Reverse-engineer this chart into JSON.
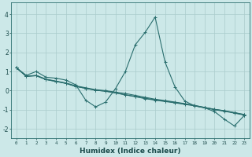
{
  "title": "",
  "xlabel": "Humidex (Indice chaleur)",
  "bg_color": "#cce8e8",
  "grid_color": "#aacccc",
  "line_color": "#2a6e6e",
  "xlim": [
    -0.5,
    23.5
  ],
  "ylim": [
    -2.5,
    4.6
  ],
  "xticks": [
    0,
    1,
    2,
    3,
    4,
    5,
    6,
    7,
    8,
    9,
    10,
    11,
    12,
    13,
    14,
    15,
    16,
    17,
    18,
    19,
    20,
    21,
    22,
    23
  ],
  "yticks": [
    -2,
    -1,
    0,
    1,
    2,
    3,
    4
  ],
  "series1_x": [
    0,
    1,
    2,
    3,
    4,
    5,
    6,
    7,
    8,
    9,
    10,
    11,
    12,
    13,
    14,
    15,
    16,
    17,
    18,
    19,
    20,
    21,
    22,
    23
  ],
  "series1_y": [
    1.2,
    0.8,
    1.0,
    0.7,
    0.65,
    0.55,
    0.3,
    -0.5,
    -0.85,
    -0.6,
    0.1,
    1.0,
    2.4,
    3.05,
    3.85,
    1.5,
    0.2,
    -0.55,
    -0.8,
    -0.9,
    -1.1,
    -1.5,
    -1.85,
    -1.3
  ],
  "series2_x": [
    0,
    1,
    2,
    3,
    4,
    5,
    6,
    7,
    8,
    9,
    10,
    11,
    12,
    13,
    14,
    15,
    16,
    17,
    18,
    19,
    20,
    21,
    22,
    23
  ],
  "series2_y": [
    1.2,
    0.75,
    0.8,
    0.6,
    0.5,
    0.4,
    0.25,
    0.15,
    0.05,
    0.0,
    -0.08,
    -0.15,
    -0.25,
    -0.35,
    -0.45,
    -0.52,
    -0.6,
    -0.68,
    -0.78,
    -0.88,
    -0.98,
    -1.05,
    -1.15,
    -1.25
  ],
  "series3_x": [
    0,
    1,
    2,
    3,
    4,
    5,
    6,
    7,
    8,
    9,
    10,
    11,
    12,
    13,
    14,
    15,
    16,
    17,
    18,
    19,
    20,
    21,
    22,
    23
  ],
  "series3_y": [
    1.2,
    0.75,
    0.78,
    0.58,
    0.48,
    0.38,
    0.22,
    0.12,
    0.02,
    -0.03,
    -0.12,
    -0.22,
    -0.32,
    -0.42,
    -0.5,
    -0.57,
    -0.64,
    -0.72,
    -0.8,
    -0.9,
    -1.0,
    -1.08,
    -1.18,
    -1.28
  ],
  "series4_x": [
    0,
    1,
    2,
    3,
    4,
    5,
    6,
    7,
    8,
    9,
    10,
    11,
    12,
    13,
    14,
    15,
    16,
    17,
    18,
    19,
    20,
    21,
    22,
    23
  ],
  "series4_y": [
    1.2,
    0.75,
    0.78,
    0.58,
    0.48,
    0.38,
    0.22,
    0.12,
    0.02,
    -0.03,
    -0.12,
    -0.22,
    -0.3,
    -0.4,
    -0.48,
    -0.55,
    -0.62,
    -0.7,
    -0.78,
    -0.88,
    -0.98,
    -1.06,
    -1.16,
    -1.26
  ]
}
